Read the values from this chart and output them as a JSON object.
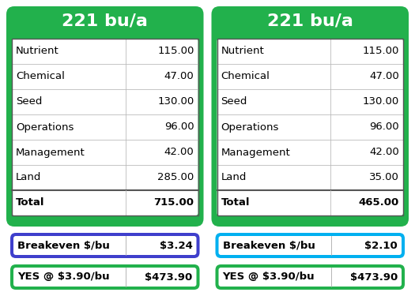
{
  "left_panel": {
    "title": "221 bu/a",
    "rows": [
      [
        "Nutrient",
        "115.00"
      ],
      [
        "Chemical",
        "47.00"
      ],
      [
        "Seed",
        "130.00"
      ],
      [
        "Operations",
        "96.00"
      ],
      [
        "Management",
        "42.00"
      ],
      [
        "Land",
        "285.00"
      ],
      [
        "Total",
        "715.00"
      ]
    ],
    "breakeven_label": "Breakeven $/bu",
    "breakeven_value": "$3.24",
    "yes_label": "YES @ $3.90/bu",
    "yes_value": "$473.90",
    "header_color": "#22b14c",
    "breakeven_bg": "#3f3fcc",
    "yes_bg": "#22b14c"
  },
  "right_panel": {
    "title": "221 bu/a",
    "rows": [
      [
        "Nutrient",
        "115.00"
      ],
      [
        "Chemical",
        "47.00"
      ],
      [
        "Seed",
        "130.00"
      ],
      [
        "Operations",
        "96.00"
      ],
      [
        "Management",
        "42.00"
      ],
      [
        "Land",
        "35.00"
      ],
      [
        "Total",
        "465.00"
      ]
    ],
    "breakeven_label": "Breakeven $/bu",
    "breakeven_value": "$2.10",
    "yes_label": "YES @ $3.90/bu",
    "yes_value": "$473.90",
    "header_color": "#22b14c",
    "breakeven_bg": "#00b0f0",
    "yes_bg": "#22b14c"
  },
  "fig_width": 5.25,
  "fig_height": 3.75,
  "dpi": 100,
  "bg_color": "#ffffff"
}
